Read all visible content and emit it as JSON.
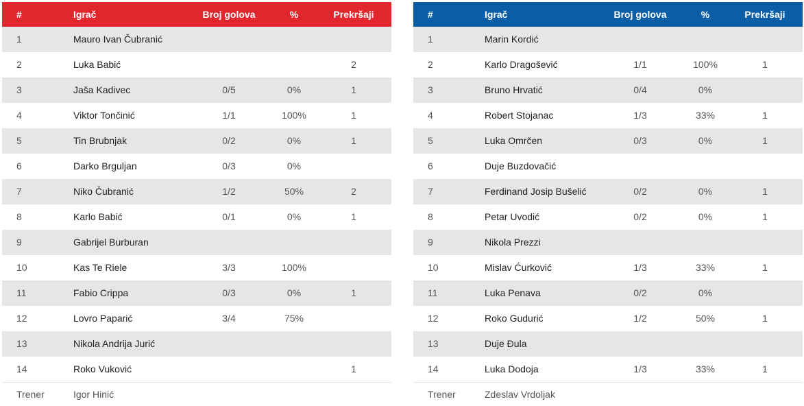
{
  "colors": {
    "home_header": "#e1262d",
    "away_header": "#0b5ea6",
    "row_stripe": "#e6e6e6"
  },
  "headers": {
    "num": "#",
    "player": "Igrač",
    "goals": "Broj golova",
    "pct": "%",
    "fouls": "Prekršaji"
  },
  "coach_label": "Trener",
  "home": {
    "coach": "Igor Hinić",
    "players": [
      {
        "num": "1",
        "name": "Mauro Ivan Čubranić",
        "goals": "",
        "pct": "",
        "fouls": ""
      },
      {
        "num": "2",
        "name": "Luka Babić",
        "goals": "",
        "pct": "",
        "fouls": "2"
      },
      {
        "num": "3",
        "name": "Jaša Kadivec",
        "goals": "0/5",
        "pct": "0%",
        "fouls": "1"
      },
      {
        "num": "4",
        "name": "Viktor Tončinić",
        "goals": "1/1",
        "pct": "100%",
        "fouls": "1"
      },
      {
        "num": "5",
        "name": "Tin Brubnjak",
        "goals": "0/2",
        "pct": "0%",
        "fouls": "1"
      },
      {
        "num": "6",
        "name": "Darko Brguljan",
        "goals": "0/3",
        "pct": "0%",
        "fouls": ""
      },
      {
        "num": "7",
        "name": "Niko Čubranić",
        "goals": "1/2",
        "pct": "50%",
        "fouls": "2"
      },
      {
        "num": "8",
        "name": "Karlo Babić",
        "goals": "0/1",
        "pct": "0%",
        "fouls": "1"
      },
      {
        "num": "9",
        "name": "Gabrijel Burburan",
        "goals": "",
        "pct": "",
        "fouls": ""
      },
      {
        "num": "10",
        "name": "Kas Te Riele",
        "goals": "3/3",
        "pct": "100%",
        "fouls": ""
      },
      {
        "num": "11",
        "name": "Fabio Crippa",
        "goals": "0/3",
        "pct": "0%",
        "fouls": "1"
      },
      {
        "num": "12",
        "name": "Lovro Paparić",
        "goals": "3/4",
        "pct": "75%",
        "fouls": ""
      },
      {
        "num": "13",
        "name": "Nikola Andrija Jurić",
        "goals": "",
        "pct": "",
        "fouls": ""
      },
      {
        "num": "14",
        "name": "Roko Vuković",
        "goals": "",
        "pct": "",
        "fouls": "1"
      }
    ]
  },
  "away": {
    "coach": "Zdeslav Vrdoljak",
    "players": [
      {
        "num": "1",
        "name": "Marin Kordić",
        "goals": "",
        "pct": "",
        "fouls": ""
      },
      {
        "num": "2",
        "name": "Karlo Dragošević",
        "goals": "1/1",
        "pct": "100%",
        "fouls": "1"
      },
      {
        "num": "3",
        "name": "Bruno Hrvatić",
        "goals": "0/4",
        "pct": "0%",
        "fouls": ""
      },
      {
        "num": "4",
        "name": "Robert Stojanac",
        "goals": "1/3",
        "pct": "33%",
        "fouls": "1"
      },
      {
        "num": "5",
        "name": "Luka Omrčen",
        "goals": "0/3",
        "pct": "0%",
        "fouls": "1"
      },
      {
        "num": "6",
        "name": "Duje Buzdovačić",
        "goals": "",
        "pct": "",
        "fouls": ""
      },
      {
        "num": "7",
        "name": "Ferdinand Josip Bušelić",
        "goals": "0/2",
        "pct": "0%",
        "fouls": "1"
      },
      {
        "num": "8",
        "name": "Petar Uvodić",
        "goals": "0/2",
        "pct": "0%",
        "fouls": "1"
      },
      {
        "num": "9",
        "name": "Nikola Prezzi",
        "goals": "",
        "pct": "",
        "fouls": ""
      },
      {
        "num": "10",
        "name": "Mislav Ćurković",
        "goals": "1/3",
        "pct": "33%",
        "fouls": "1"
      },
      {
        "num": "11",
        "name": "Luka Penava",
        "goals": "0/2",
        "pct": "0%",
        "fouls": ""
      },
      {
        "num": "12",
        "name": "Roko Gudurić",
        "goals": "1/2",
        "pct": "50%",
        "fouls": "1"
      },
      {
        "num": "13",
        "name": "Duje Đula",
        "goals": "",
        "pct": "",
        "fouls": ""
      },
      {
        "num": "14",
        "name": "Luka Dodoja",
        "goals": "1/3",
        "pct": "33%",
        "fouls": "1"
      }
    ]
  }
}
